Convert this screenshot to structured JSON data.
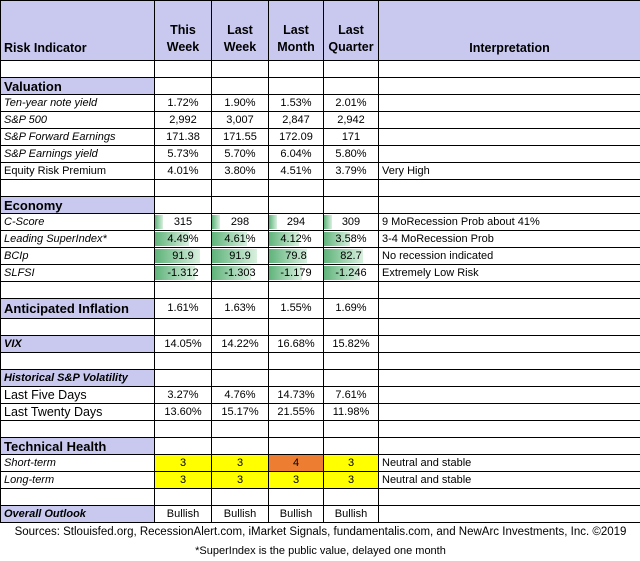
{
  "header": {
    "indicator": "Risk Indicator",
    "this_week": [
      "This",
      "Week"
    ],
    "last_week": [
      "Last",
      "Week"
    ],
    "last_month": [
      "Last",
      "Month"
    ],
    "last_quarter": [
      "Last",
      "Quarter"
    ],
    "interpretation": "Interpretation"
  },
  "valuation": {
    "title": "Valuation",
    "rows": [
      {
        "label": "Ten-year note yield",
        "v": [
          "1.72%",
          "1.90%",
          "1.53%",
          "2.01%"
        ],
        "interp": ""
      },
      {
        "label": "S&P 500",
        "v": [
          "2,992",
          "3,007",
          "2,847",
          "2,942"
        ],
        "interp": ""
      },
      {
        "label": "S&P Forward Earnings",
        "v": [
          "171.38",
          "171.55",
          "172.09",
          "171"
        ],
        "interp": ""
      },
      {
        "label": "S&P Earnings yield",
        "v": [
          "5.73%",
          "5.70%",
          "6.04%",
          "5.80%"
        ],
        "interp": ""
      },
      {
        "label": "Equity Risk Premium",
        "v": [
          "4.01%",
          "3.80%",
          "4.51%",
          "3.79%"
        ],
        "interp": "Very High"
      }
    ]
  },
  "economy": {
    "title": "Economy",
    "rows": [
      {
        "label": "C-Score",
        "v": [
          "315",
          "298",
          "294",
          "309"
        ],
        "fill": [
          0.15,
          0.15,
          0.15,
          0.15
        ],
        "interp": "9 MoRecession Prob about 41%"
      },
      {
        "label": "Leading SuperIndex*",
        "v": [
          "4.49%",
          "4.61%",
          "4.12%",
          "3.58%"
        ],
        "fill": [
          0.6,
          0.62,
          0.55,
          0.48
        ],
        "interp": "3-4 MoRecession Prob"
      },
      {
        "label": "BCIp",
        "v": [
          "91.9",
          "91.9",
          "79.8",
          "82.7"
        ],
        "fill": [
          0.8,
          0.8,
          0.7,
          0.72
        ],
        "interp": "No recession indicated"
      },
      {
        "label": "SLFSI",
        "v": [
          "-1.312",
          "-1.303",
          "-1.179",
          "-1.246"
        ],
        "fill": [
          0.72,
          0.7,
          0.62,
          0.66
        ],
        "interp": "Extremely Low Risk"
      }
    ]
  },
  "inflation": {
    "title": "Anticipated Inflation",
    "v": [
      "1.61%",
      "1.63%",
      "1.55%",
      "1.69%"
    ]
  },
  "vix": {
    "title": "VIX",
    "v": [
      "14.05%",
      "14.22%",
      "16.68%",
      "15.82%"
    ]
  },
  "volatility": {
    "title": "Historical  S&P Volatility",
    "rows": [
      {
        "label": "Last Five Days",
        "v": [
          "3.27%",
          "4.76%",
          "14.73%",
          "7.61%"
        ]
      },
      {
        "label": "Last Twenty Days",
        "v": [
          "13.60%",
          "15.17%",
          "21.55%",
          "11.98%"
        ]
      }
    ]
  },
  "technical": {
    "title": "Technical Health",
    "rows": [
      {
        "label": "Short-term",
        "v": [
          "3",
          "3",
          "4",
          "3"
        ],
        "colors": [
          "yellow",
          "yellow",
          "orange",
          "yellow"
        ],
        "interp": "Neutral and stable"
      },
      {
        "label": "Long-term",
        "v": [
          "3",
          "3",
          "3",
          "3"
        ],
        "colors": [
          "yellow",
          "yellow",
          "yellow",
          "yellow"
        ],
        "interp": "Neutral and stable"
      }
    ]
  },
  "outlook": {
    "title": "Overall Outlook",
    "v": [
      "Bullish",
      "Bullish",
      "Bullish",
      "Bullish"
    ]
  },
  "footer": {
    "sources": "Sources: Stlouisfed.org, RecessionAlert.com, iMarket Signals, fundamentalis.com, and NewArc Investments, Inc. ©2019",
    "note": "*SuperIndex is the public value, delayed one month"
  },
  "colors": {
    "header_bg": "#c9c9f0",
    "yellow": "#ffff00",
    "orange": "#ed7d31",
    "bar_green": "#5fb37a"
  }
}
